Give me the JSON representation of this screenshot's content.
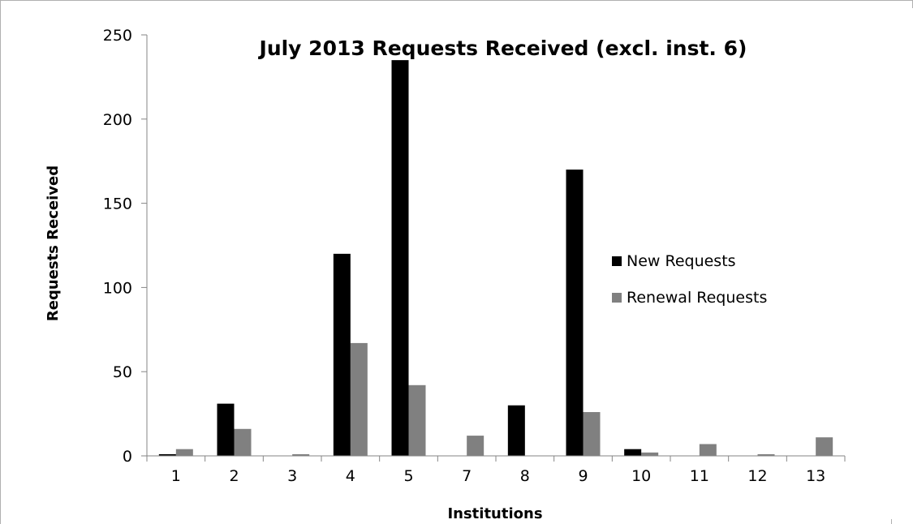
{
  "chart_data": {
    "type": "bar",
    "title": "July 2013 Requests Received (excl. inst. 6)",
    "xlabel": "Institutions",
    "ylabel": "Requests Received",
    "categories": [
      "1",
      "2",
      "3",
      "4",
      "5",
      "7",
      "8",
      "9",
      "10",
      "11",
      "12",
      "13"
    ],
    "series": [
      {
        "name": "New Requests",
        "color": "#000000",
        "values": [
          1,
          31,
          0,
          120,
          235,
          0,
          30,
          170,
          4,
          0,
          0,
          0
        ]
      },
      {
        "name": "Renewal Requests",
        "color": "#808080",
        "values": [
          4,
          16,
          1,
          67,
          42,
          12,
          0,
          26,
          2,
          7,
          1,
          11
        ]
      }
    ],
    "ylim": [
      0,
      250
    ],
    "yticks": [
      0,
      50,
      100,
      150,
      200,
      250
    ],
    "grid": false,
    "legend_position": "right"
  }
}
